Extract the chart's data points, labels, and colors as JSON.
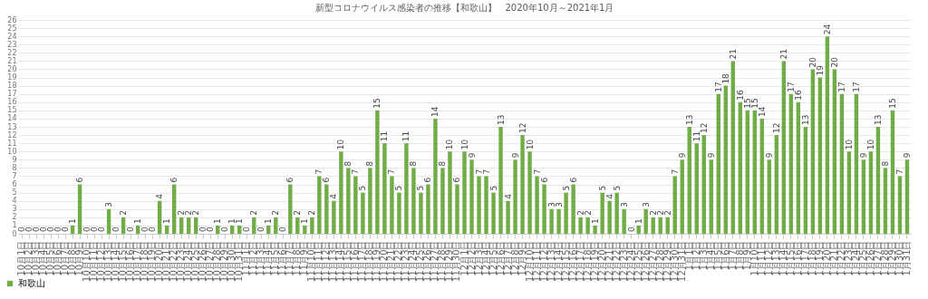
{
  "chart_data": {
    "type": "bar",
    "title": "新型コロナウイルス感染者の推移【和歌山】　2020年10月～2021年1月",
    "categories": [
      "10月1日",
      "10月2日",
      "10月3日",
      "10月4日",
      "10月5日",
      "10月6日",
      "10月7日",
      "10月8日",
      "10月9日",
      "10月10日",
      "10月11日",
      "10月12日",
      "10月13日",
      "10月14日",
      "10月15日",
      "10月16日",
      "10月17日",
      "10月18日",
      "10月19日",
      "10月20日",
      "10月21日",
      "10月22日",
      "10月23日",
      "10月24日",
      "10月25日",
      "10月26日",
      "10月27日",
      "10月28日",
      "10月29日",
      "10月30日",
      "10月31日",
      "11月1日",
      "11月2日",
      "11月3日",
      "11月4日",
      "11月5日",
      "11月6日",
      "11月7日",
      "11月8日",
      "11月9日",
      "11月10日",
      "11月11日",
      "11月12日",
      "11月13日",
      "11月14日",
      "11月15日",
      "11月16日",
      "11月17日",
      "11月18日",
      "11月19日",
      "11月20日",
      "11月21日",
      "11月22日",
      "11月23日",
      "11月24日",
      "11月25日",
      "11月26日",
      "11月27日",
      "11月28日",
      "11月29日",
      "11月30日",
      "12月1日",
      "12月2日",
      "12月3日",
      "12月4日",
      "12月5日",
      "12月6日",
      "12月7日",
      "12月8日",
      "12月9日",
      "12月10日",
      "12月11日",
      "12月12日",
      "12月13日",
      "12月14日",
      "12月15日",
      "12月16日",
      "12月17日",
      "12月18日",
      "12月19日",
      "12月20日",
      "12月21日",
      "12月22日",
      "12月23日",
      "12月24日",
      "12月25日",
      "12月26日",
      "12月27日",
      "12月28日",
      "12月29日",
      "12月30日",
      "12月31日",
      "1月1日",
      "1月2日",
      "1月3日",
      "1月4日",
      "1月5日",
      "1月6日",
      "1月7日",
      "1月8日",
      "1月9日",
      "1月10日",
      "1月11日",
      "1月12日",
      "1月13日",
      "1月14日",
      "1月15日",
      "1月16日",
      "1月17日",
      "1月18日",
      "1月19日",
      "1月20日",
      "1月21日",
      "1月22日",
      "1月23日",
      "1月24日",
      "1月25日",
      "1月26日",
      "1月27日",
      "1月28日",
      "1月29日",
      "1月30日",
      "1月31日"
    ],
    "series": [
      {
        "name": "和歌山",
        "color": "#70ad47",
        "values": [
          0,
          0,
          0,
          0,
          0,
          0,
          0,
          1,
          6,
          0,
          0,
          0,
          3,
          0,
          2,
          0,
          1,
          0,
          0,
          4,
          1,
          6,
          2,
          2,
          2,
          0,
          0,
          1,
          0,
          1,
          1,
          0,
          2,
          0,
          1,
          2,
          0,
          6,
          2,
          1,
          2,
          7,
          6,
          4,
          10,
          8,
          7,
          5,
          8,
          15,
          11,
          7,
          5,
          11,
          8,
          5,
          6,
          14,
          8,
          10,
          6,
          10,
          9,
          7,
          7,
          5,
          13,
          4,
          9,
          12,
          10,
          7,
          6,
          3,
          3,
          5,
          6,
          2,
          2,
          1,
          5,
          4,
          5,
          3,
          0,
          1,
          3,
          2,
          2,
          2,
          7,
          9,
          13,
          11,
          12,
          9,
          17,
          18,
          21,
          16,
          15,
          15,
          14,
          9,
          12,
          21,
          17,
          16,
          13,
          20,
          19,
          24,
          20,
          17,
          10,
          17,
          9,
          10,
          13,
          8,
          15,
          7,
          9
        ]
      }
    ],
    "ylim": [
      0,
      26
    ],
    "yticks": [
      0,
      1,
      2,
      3,
      4,
      5,
      6,
      7,
      8,
      9,
      10,
      11,
      12,
      13,
      14,
      15,
      16,
      17,
      18,
      19,
      20,
      21,
      22,
      23,
      24,
      25,
      26
    ],
    "grid": "y",
    "legend": "bottom left",
    "data_labels": true
  }
}
